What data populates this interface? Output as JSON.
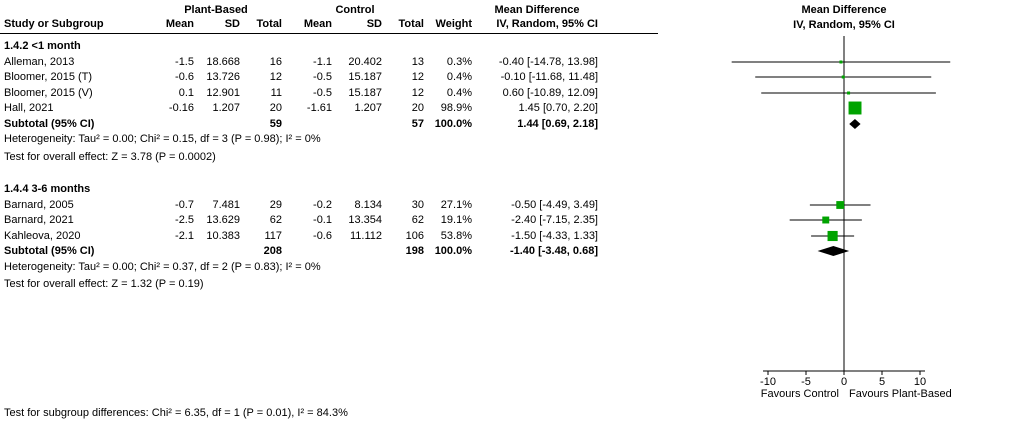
{
  "table": {
    "group1_header": "Plant-Based",
    "group2_header": "Control",
    "md_header": "Mean Difference",
    "method_header": "IV, Random, 95% CI",
    "col_headers": [
      "Study or Subgroup",
      "Mean",
      "SD",
      "Total",
      "Mean",
      "SD",
      "Total",
      "Weight",
      "IV, Random, 95% CI"
    ]
  },
  "chart_data": {
    "type": "forest",
    "effect_measure": "Mean Difference",
    "model": "IV, Random, 95% CI",
    "subgroups": [
      {
        "label": "1.4.2 <1 month",
        "studies": [
          {
            "name": "Alleman, 2013",
            "mean_pb": "-1.5",
            "sd_pb": "18.668",
            "total_pb": "16",
            "mean_c": "-1.1",
            "sd_c": "20.402",
            "total_c": "13",
            "weight": "0.3%",
            "ci": "-0.40 [-14.78, 13.98]",
            "est": -0.4,
            "lo": -14.78,
            "hi": 13.98,
            "w_pct": 0.3
          },
          {
            "name": "Bloomer, 2015 (T)",
            "mean_pb": "-0.6",
            "sd_pb": "13.726",
            "total_pb": "12",
            "mean_c": "-0.5",
            "sd_c": "15.187",
            "total_c": "12",
            "weight": "0.4%",
            "ci": "-0.10 [-11.68, 11.48]",
            "est": -0.1,
            "lo": -11.68,
            "hi": 11.48,
            "w_pct": 0.4
          },
          {
            "name": "Bloomer, 2015 (V)",
            "mean_pb": "0.1",
            "sd_pb": "12.901",
            "total_pb": "11",
            "mean_c": "-0.5",
            "sd_c": "15.187",
            "total_c": "12",
            "weight": "0.4%",
            "ci": "0.60 [-10.89, 12.09]",
            "est": 0.6,
            "lo": -10.89,
            "hi": 12.09,
            "w_pct": 0.4
          },
          {
            "name": "Hall, 2021",
            "mean_pb": "-0.16",
            "sd_pb": "1.207",
            "total_pb": "20",
            "mean_c": "-1.61",
            "sd_c": "1.207",
            "total_c": "20",
            "weight": "98.9%",
            "ci": "1.45 [0.70, 2.20]",
            "est": 1.45,
            "lo": 0.7,
            "hi": 2.2,
            "w_pct": 98.9
          }
        ],
        "subtotal": {
          "label": "Subtotal (95% CI)",
          "total_pb": "59",
          "total_c": "57",
          "weight": "100.0%",
          "ci": "1.44 [0.69, 2.18]",
          "est": 1.44,
          "lo": 0.69,
          "hi": 2.18
        },
        "heterogeneity": "Heterogeneity: Tau² = 0.00; Chi² = 0.15, df = 3 (P = 0.98); I² = 0%",
        "overall_effect": "Test for overall effect: Z = 3.78 (P = 0.0002)"
      },
      {
        "label": "1.4.4 3-6 months",
        "studies": [
          {
            "name": "Barnard, 2005",
            "mean_pb": "-0.7",
            "sd_pb": "7.481",
            "total_pb": "29",
            "mean_c": "-0.2",
            "sd_c": "8.134",
            "total_c": "30",
            "weight": "27.1%",
            "ci": "-0.50 [-4.49, 3.49]",
            "est": -0.5,
            "lo": -4.49,
            "hi": 3.49,
            "w_pct": 27.1
          },
          {
            "name": "Barnard, 2021",
            "mean_pb": "-2.5",
            "sd_pb": "13.629",
            "total_pb": "62",
            "mean_c": "-0.1",
            "sd_c": "13.354",
            "total_c": "62",
            "weight": "19.1%",
            "ci": "-2.40 [-7.15, 2.35]",
            "est": -2.4,
            "lo": -7.15,
            "hi": 2.35,
            "w_pct": 19.1
          },
          {
            "name": "Kahleova, 2020",
            "mean_pb": "-2.1",
            "sd_pb": "10.383",
            "total_pb": "117",
            "mean_c": "-0.6",
            "sd_c": "11.112",
            "total_c": "106",
            "weight": "53.8%",
            "ci": "-1.50 [-4.33, 1.33]",
            "est": -1.5,
            "lo": -4.33,
            "hi": 1.33,
            "w_pct": 53.8
          }
        ],
        "subtotal": {
          "label": "Subtotal (95% CI)",
          "total_pb": "208",
          "total_c": "198",
          "weight": "100.0%",
          "ci": "-1.40 [-3.48, 0.68]",
          "est": -1.4,
          "lo": -3.48,
          "hi": 0.68
        },
        "heterogeneity": "Heterogeneity: Tau² = 0.00; Chi² = 0.37, df = 2 (P = 0.83); I² = 0%",
        "overall_effect": "Test for overall effect: Z = 1.32 (P = 0.19)"
      }
    ],
    "axis": {
      "ticks": [
        -10,
        -5,
        0,
        5,
        10
      ],
      "tick_labels": [
        "-10",
        "-5",
        "0",
        "5",
        "10"
      ],
      "xmin": -15,
      "xmax": 15
    },
    "favours_left": "Favours Control",
    "favours_right": "Favours Plant-Based",
    "subgroup_diff": "Test for subgroup differences: Chi² = 6.35, df = 1 (P = 0.01), I² = 84.3%",
    "colors": {
      "square": "#00a300",
      "diamond": "#000000",
      "line": "#000000"
    }
  }
}
